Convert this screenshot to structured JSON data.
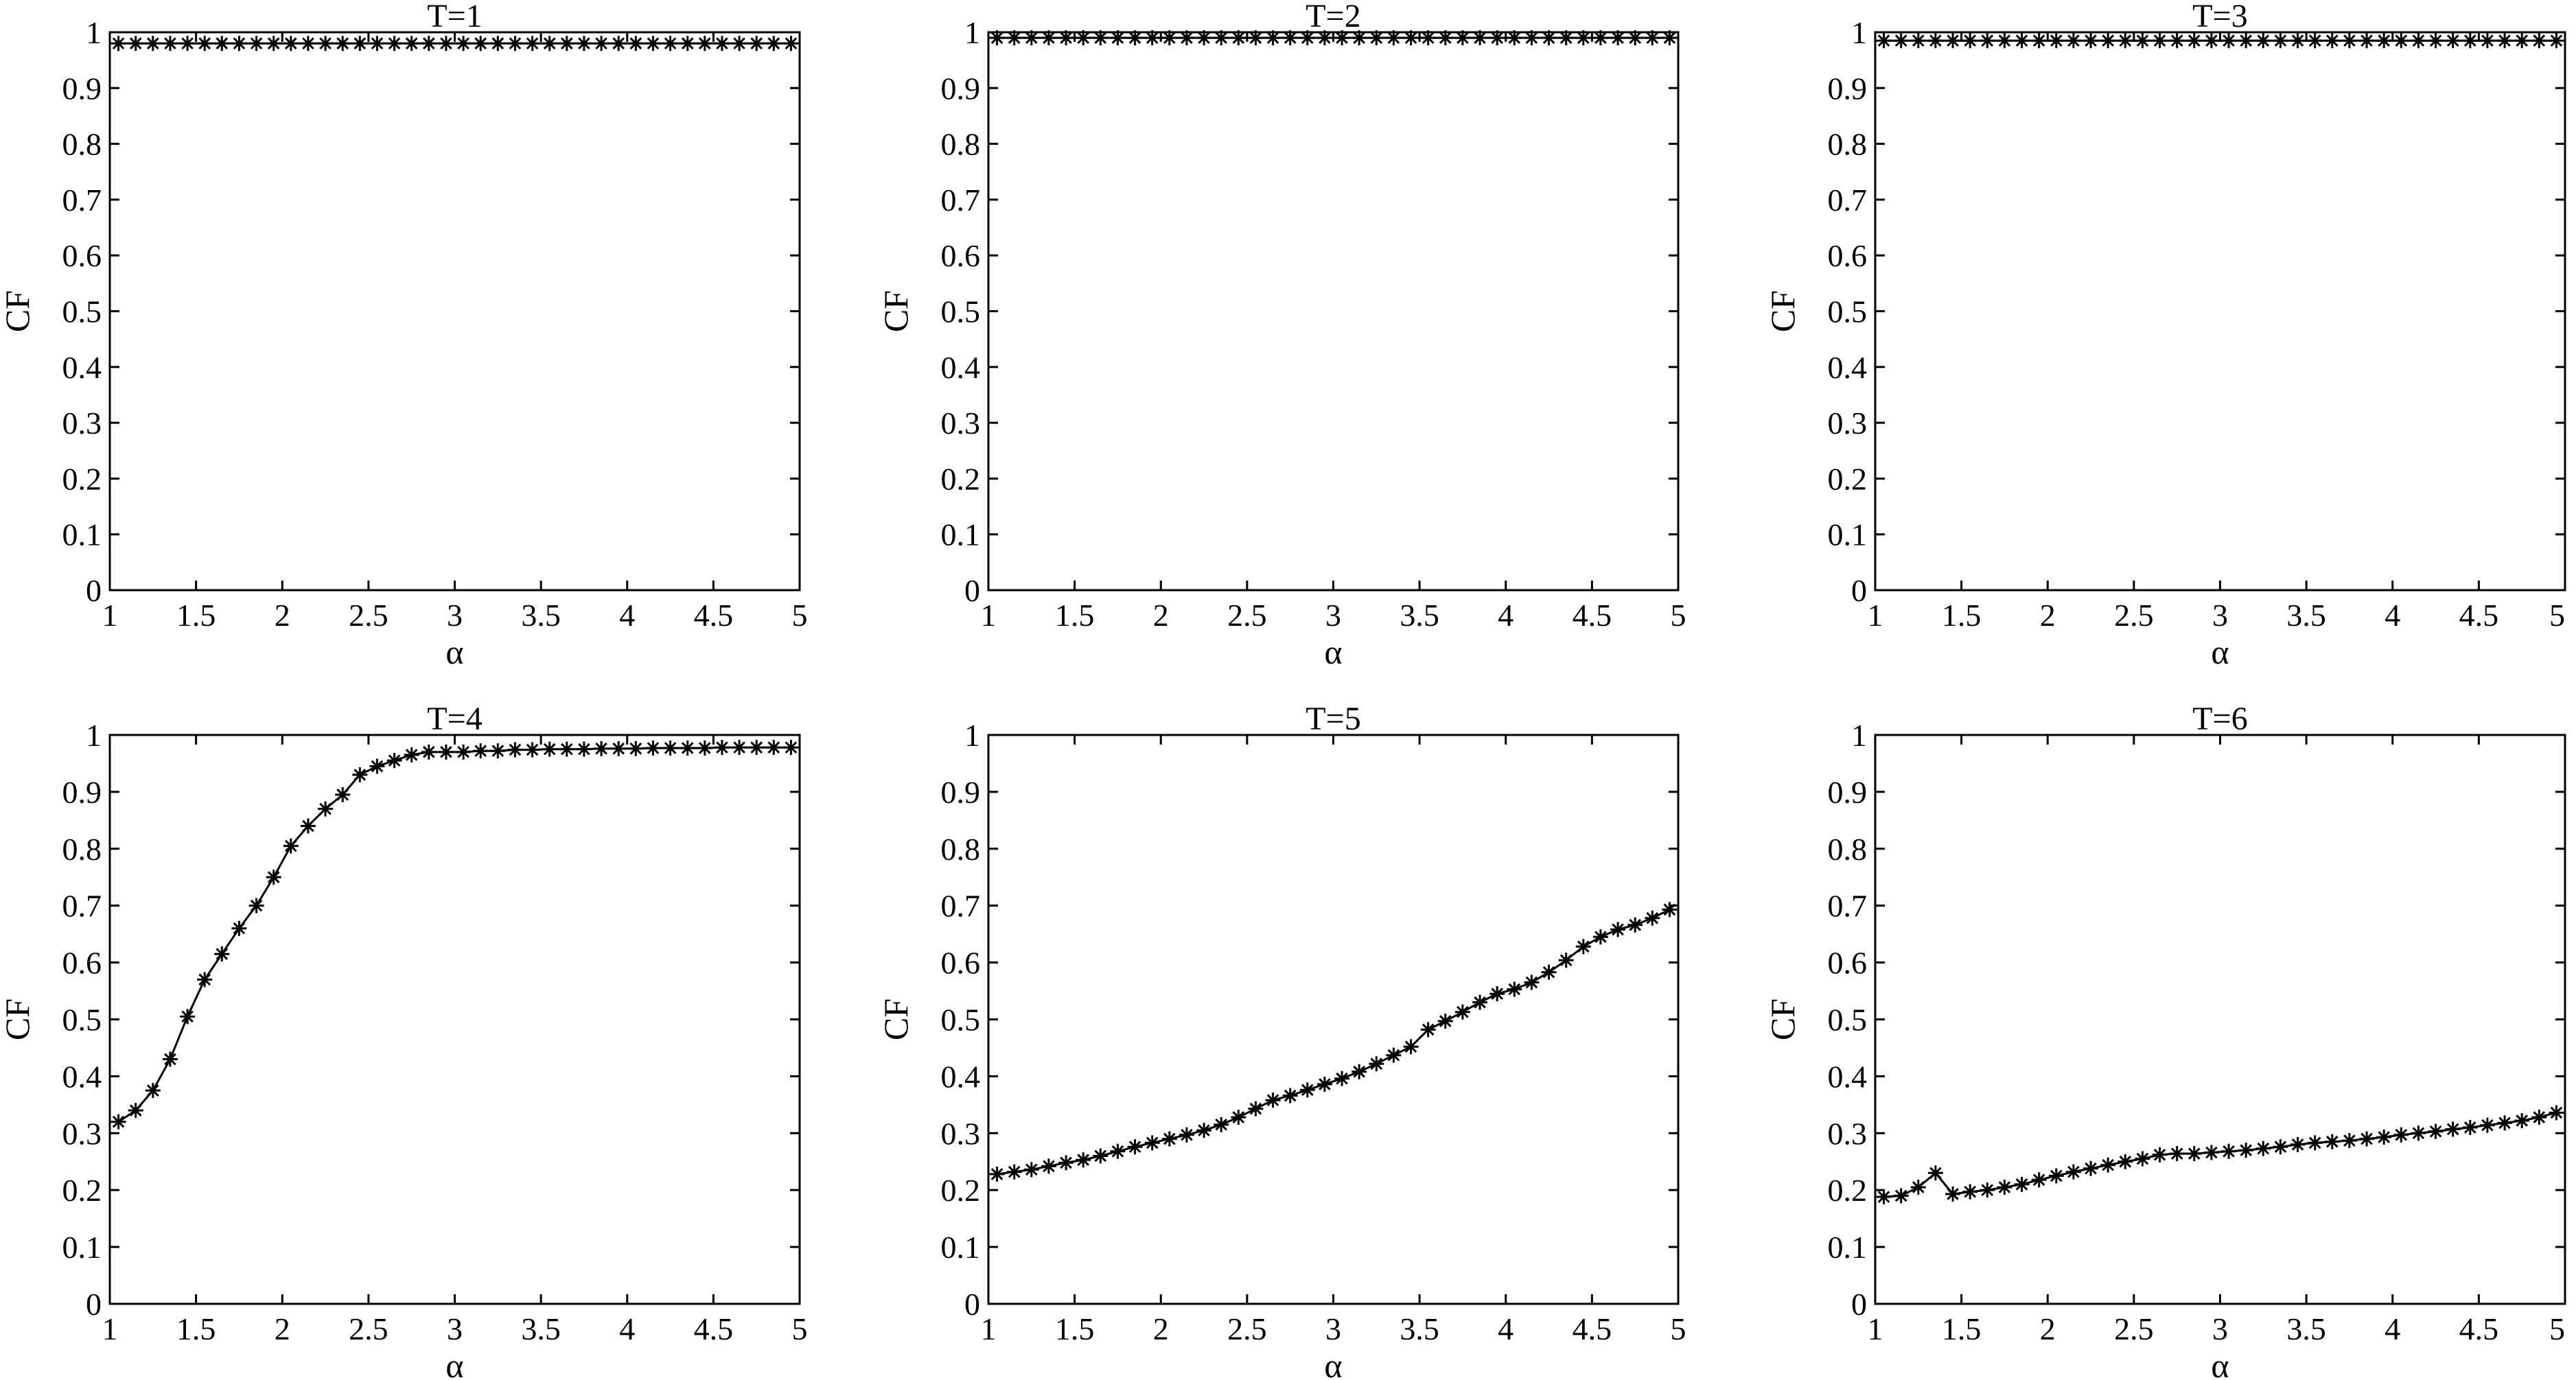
{
  "figure": {
    "colors": {
      "line": "#000000",
      "background": "#ffffff"
    }
  },
  "chart_data": [
    {
      "type": "line",
      "title": "T=1",
      "xlabel": "α",
      "ylabel": "CF",
      "xlim": [
        1,
        5
      ],
      "ylim": [
        0,
        1
      ],
      "xticks": [
        "1",
        "1.5",
        "2",
        "2.5",
        "3",
        "3.5",
        "4",
        "4.5",
        "5"
      ],
      "yticks": [
        "0",
        "0.1",
        "0.2",
        "0.3",
        "0.4",
        "0.5",
        "0.6",
        "0.7",
        "0.8",
        "0.9",
        "1"
      ],
      "marker": "asterisk",
      "grid": false,
      "x_start": 1.05,
      "x_step": 0.1,
      "n_points": 40,
      "y": [
        0.98,
        0.98,
        0.98,
        0.98,
        0.98,
        0.98,
        0.98,
        0.98,
        0.98,
        0.98,
        0.98,
        0.98,
        0.98,
        0.98,
        0.98,
        0.98,
        0.98,
        0.98,
        0.98,
        0.98,
        0.98,
        0.98,
        0.98,
        0.98,
        0.98,
        0.98,
        0.98,
        0.98,
        0.98,
        0.98,
        0.98,
        0.98,
        0.98,
        0.98,
        0.98,
        0.98,
        0.98,
        0.98,
        0.98,
        0.98
      ]
    },
    {
      "type": "line",
      "title": "T=2",
      "xlabel": "α",
      "ylabel": "CF",
      "xlim": [
        1,
        5
      ],
      "ylim": [
        0,
        1
      ],
      "xticks": [
        "1",
        "1.5",
        "2",
        "2.5",
        "3",
        "3.5",
        "4",
        "4.5",
        "5"
      ],
      "yticks": [
        "0",
        "0.1",
        "0.2",
        "0.3",
        "0.4",
        "0.5",
        "0.6",
        "0.7",
        "0.8",
        "0.9",
        "1"
      ],
      "marker": "asterisk",
      "grid": false,
      "x_start": 1.05,
      "x_step": 0.1,
      "n_points": 40,
      "y": [
        0.99,
        0.99,
        0.99,
        0.99,
        0.99,
        0.99,
        0.99,
        0.99,
        0.99,
        0.99,
        0.99,
        0.99,
        0.99,
        0.99,
        0.99,
        0.99,
        0.99,
        0.99,
        0.99,
        0.99,
        0.99,
        0.99,
        0.99,
        0.99,
        0.99,
        0.99,
        0.99,
        0.99,
        0.99,
        0.99,
        0.99,
        0.99,
        0.99,
        0.99,
        0.99,
        0.99,
        0.99,
        0.99,
        0.99,
        0.99
      ]
    },
    {
      "type": "line",
      "title": "T=3",
      "xlabel": "α",
      "ylabel": "CF",
      "xlim": [
        1,
        5
      ],
      "ylim": [
        0,
        1
      ],
      "xticks": [
        "1",
        "1.5",
        "2",
        "2.5",
        "3",
        "3.5",
        "4",
        "4.5",
        "5"
      ],
      "yticks": [
        "0",
        "0.1",
        "0.2",
        "0.3",
        "0.4",
        "0.5",
        "0.6",
        "0.7",
        "0.8",
        "0.9",
        "1"
      ],
      "marker": "asterisk",
      "grid": false,
      "x_start": 1.05,
      "x_step": 0.1,
      "n_points": 40,
      "y": [
        0.985,
        0.985,
        0.985,
        0.985,
        0.985,
        0.985,
        0.985,
        0.985,
        0.985,
        0.985,
        0.985,
        0.985,
        0.985,
        0.985,
        0.985,
        0.985,
        0.985,
        0.985,
        0.985,
        0.985,
        0.985,
        0.985,
        0.985,
        0.985,
        0.985,
        0.985,
        0.985,
        0.985,
        0.985,
        0.985,
        0.985,
        0.985,
        0.985,
        0.985,
        0.985,
        0.985,
        0.985,
        0.985,
        0.985,
        0.985
      ]
    },
    {
      "type": "line",
      "title": "T=4",
      "xlabel": "α",
      "ylabel": "CF",
      "xlim": [
        1,
        5
      ],
      "ylim": [
        0,
        1
      ],
      "xticks": [
        "1",
        "1.5",
        "2",
        "2.5",
        "3",
        "3.5",
        "4",
        "4.5",
        "5"
      ],
      "yticks": [
        "0",
        "0.1",
        "0.2",
        "0.3",
        "0.4",
        "0.5",
        "0.6",
        "0.7",
        "0.8",
        "0.9",
        "1"
      ],
      "marker": "asterisk",
      "grid": false,
      "x_start": 1.05,
      "x_step": 0.1,
      "n_points": 40,
      "y": [
        0.32,
        0.34,
        0.375,
        0.43,
        0.505,
        0.57,
        0.615,
        0.66,
        0.7,
        0.75,
        0.805,
        0.84,
        0.87,
        0.895,
        0.93,
        0.945,
        0.955,
        0.965,
        0.97,
        0.97,
        0.97,
        0.972,
        0.972,
        0.974,
        0.974,
        0.975,
        0.975,
        0.975,
        0.976,
        0.976,
        0.976,
        0.977,
        0.977,
        0.977,
        0.977,
        0.978,
        0.978,
        0.978,
        0.978,
        0.978
      ]
    },
    {
      "type": "line",
      "title": "T=5",
      "xlabel": "α",
      "ylabel": "CF",
      "xlim": [
        1,
        5
      ],
      "ylim": [
        0,
        1
      ],
      "xticks": [
        "1",
        "1.5",
        "2",
        "2.5",
        "3",
        "3.5",
        "4",
        "4.5",
        "5"
      ],
      "yticks": [
        "0",
        "0.1",
        "0.2",
        "0.3",
        "0.4",
        "0.5",
        "0.6",
        "0.7",
        "0.8",
        "0.9",
        "1"
      ],
      "marker": "asterisk",
      "grid": false,
      "x_start": 1.05,
      "x_step": 0.1,
      "n_points": 40,
      "y": [
        0.228,
        0.232,
        0.236,
        0.242,
        0.248,
        0.253,
        0.26,
        0.268,
        0.276,
        0.283,
        0.29,
        0.297,
        0.305,
        0.315,
        0.328,
        0.343,
        0.358,
        0.366,
        0.376,
        0.386,
        0.396,
        0.408,
        0.422,
        0.437,
        0.452,
        0.482,
        0.497,
        0.513,
        0.53,
        0.545,
        0.553,
        0.565,
        0.583,
        0.604,
        0.628,
        0.645,
        0.658,
        0.666,
        0.678,
        0.693
      ]
    },
    {
      "type": "line",
      "title": "T=6",
      "xlabel": "α",
      "ylabel": "CF",
      "xlim": [
        1,
        5
      ],
      "ylim": [
        0,
        1
      ],
      "xticks": [
        "1",
        "1.5",
        "2",
        "2.5",
        "3",
        "3.5",
        "4",
        "4.5",
        "5"
      ],
      "yticks": [
        "0",
        "0.1",
        "0.2",
        "0.3",
        "0.4",
        "0.5",
        "0.6",
        "0.7",
        "0.8",
        "0.9",
        "1"
      ],
      "marker": "asterisk",
      "grid": false,
      "x_start": 1.05,
      "x_step": 0.1,
      "n_points": 40,
      "y": [
        0.188,
        0.19,
        0.205,
        0.23,
        0.193,
        0.197,
        0.2,
        0.205,
        0.21,
        0.218,
        0.225,
        0.232,
        0.238,
        0.244,
        0.25,
        0.255,
        0.262,
        0.264,
        0.264,
        0.266,
        0.268,
        0.27,
        0.273,
        0.276,
        0.28,
        0.283,
        0.285,
        0.287,
        0.29,
        0.293,
        0.297,
        0.3,
        0.303,
        0.307,
        0.31,
        0.314,
        0.318,
        0.322,
        0.328,
        0.336
      ]
    }
  ]
}
